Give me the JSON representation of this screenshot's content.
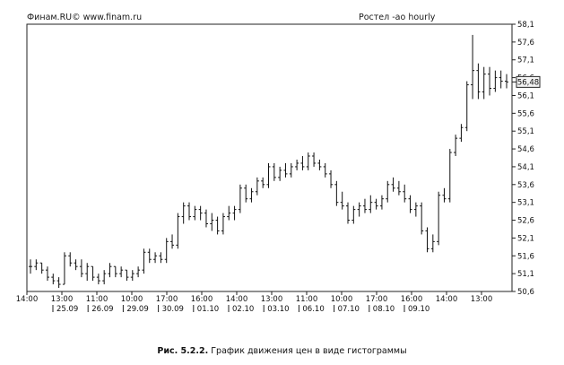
{
  "header": {
    "source": "Финам.RU© www.finam.ru",
    "instrument": "Ростел -ао hourly"
  },
  "caption": {
    "number": "Рис. 5.2.2.",
    "text": "График движения цен в виде гистограммы"
  },
  "chart_data": {
    "type": "ohlc",
    "title": "Ростел -ао hourly",
    "xlabel": "",
    "ylabel": "",
    "ylim": [
      50.6,
      58.1
    ],
    "y_ticks": [
      "58,1",
      "57,6",
      "57,1",
      "56,6",
      "56,1",
      "55,6",
      "55,1",
      "54,6",
      "54,1",
      "53,6",
      "53,1",
      "52,6",
      "52,1",
      "51,6",
      "51,1",
      "50,6"
    ],
    "time_labels": [
      "14:00",
      "13:00",
      "11:00",
      "10:00",
      "17:00",
      "16:00",
      "14:00",
      "13:00",
      "11:00",
      "10:00",
      "17:00",
      "16:00",
      "14:00",
      "13:00"
    ],
    "date_labels": [
      "25.09",
      "26.09",
      "29.09",
      "30.09",
      "01.10",
      "02.10",
      "03.10",
      "06.10",
      "07.10",
      "08.10",
      "09.10"
    ],
    "last_price": "56,48",
    "last_price_value": 56.48,
    "grid": false,
    "bars": [
      [
        51.3,
        51.5,
        51.1,
        51.3
      ],
      [
        51.3,
        51.5,
        51.2,
        51.4
      ],
      [
        51.4,
        51.4,
        51.1,
        51.2
      ],
      [
        51.2,
        51.3,
        50.9,
        51.0
      ],
      [
        51.0,
        51.1,
        50.8,
        50.9
      ],
      [
        50.9,
        51.0,
        50.7,
        50.8
      ],
      [
        50.8,
        51.7,
        50.8,
        51.6
      ],
      [
        51.6,
        51.7,
        51.3,
        51.4
      ],
      [
        51.4,
        51.5,
        51.2,
        51.3
      ],
      [
        51.3,
        51.5,
        51.0,
        51.1
      ],
      [
        51.1,
        51.4,
        50.9,
        51.3
      ],
      [
        51.3,
        51.3,
        50.9,
        51.0
      ],
      [
        51.0,
        51.1,
        50.8,
        50.9
      ],
      [
        50.9,
        51.2,
        50.8,
        51.1
      ],
      [
        51.1,
        51.4,
        51.0,
        51.3
      ],
      [
        51.3,
        51.3,
        51.0,
        51.1
      ],
      [
        51.1,
        51.3,
        51.0,
        51.2
      ],
      [
        51.2,
        51.2,
        50.9,
        51.0
      ],
      [
        51.0,
        51.2,
        50.9,
        51.1
      ],
      [
        51.1,
        51.3,
        51.0,
        51.2
      ],
      [
        51.2,
        51.8,
        51.1,
        51.7
      ],
      [
        51.7,
        51.8,
        51.4,
        51.5
      ],
      [
        51.5,
        51.7,
        51.4,
        51.6
      ],
      [
        51.6,
        51.7,
        51.4,
        51.5
      ],
      [
        51.5,
        52.1,
        51.4,
        52.0
      ],
      [
        52.0,
        52.2,
        51.8,
        51.9
      ],
      [
        51.9,
        52.8,
        51.8,
        52.7
      ],
      [
        52.7,
        53.1,
        52.5,
        53.0
      ],
      [
        53.0,
        53.1,
        52.6,
        52.7
      ],
      [
        52.7,
        53.0,
        52.6,
        52.9
      ],
      [
        52.9,
        53.0,
        52.6,
        52.8
      ],
      [
        52.8,
        52.9,
        52.4,
        52.5
      ],
      [
        52.5,
        52.8,
        52.3,
        52.6
      ],
      [
        52.6,
        52.7,
        52.2,
        52.3
      ],
      [
        52.3,
        52.8,
        52.2,
        52.7
      ],
      [
        52.7,
        53.0,
        52.6,
        52.8
      ],
      [
        52.8,
        53.0,
        52.6,
        52.9
      ],
      [
        52.9,
        53.6,
        52.8,
        53.5
      ],
      [
        53.5,
        53.6,
        53.1,
        53.2
      ],
      [
        53.2,
        53.5,
        53.1,
        53.4
      ],
      [
        53.4,
        53.8,
        53.3,
        53.7
      ],
      [
        53.7,
        53.8,
        53.5,
        53.6
      ],
      [
        53.6,
        54.2,
        53.5,
        54.1
      ],
      [
        54.1,
        54.2,
        53.7,
        53.8
      ],
      [
        53.8,
        54.1,
        53.7,
        54.0
      ],
      [
        54.0,
        54.2,
        53.8,
        53.9
      ],
      [
        53.9,
        54.2,
        53.8,
        54.1
      ],
      [
        54.1,
        54.3,
        54.0,
        54.2
      ],
      [
        54.2,
        54.4,
        54.0,
        54.1
      ],
      [
        54.1,
        54.5,
        54.0,
        54.4
      ],
      [
        54.4,
        54.5,
        54.1,
        54.2
      ],
      [
        54.2,
        54.3,
        54.0,
        54.1
      ],
      [
        54.1,
        54.2,
        53.8,
        53.9
      ],
      [
        53.9,
        54.0,
        53.5,
        53.6
      ],
      [
        53.6,
        53.7,
        53.0,
        53.1
      ],
      [
        53.1,
        53.4,
        52.9,
        53.0
      ],
      [
        53.0,
        53.1,
        52.5,
        52.6
      ],
      [
        52.6,
        53.0,
        52.5,
        52.9
      ],
      [
        52.9,
        53.1,
        52.7,
        53.0
      ],
      [
        53.0,
        53.2,
        52.8,
        52.9
      ],
      [
        52.9,
        53.3,
        52.8,
        53.1
      ],
      [
        53.1,
        53.2,
        52.9,
        53.0
      ],
      [
        53.0,
        53.3,
        52.9,
        53.2
      ],
      [
        53.2,
        53.7,
        53.1,
        53.6
      ],
      [
        53.6,
        53.8,
        53.4,
        53.5
      ],
      [
        53.5,
        53.7,
        53.3,
        53.4
      ],
      [
        53.4,
        53.6,
        53.1,
        53.2
      ],
      [
        53.2,
        53.3,
        52.8,
        52.9
      ],
      [
        52.9,
        53.1,
        52.7,
        53.0
      ],
      [
        53.0,
        53.1,
        52.2,
        52.3
      ],
      [
        52.3,
        52.4,
        51.7,
        51.8
      ],
      [
        51.8,
        52.2,
        51.7,
        52.0
      ],
      [
        52.0,
        53.4,
        51.9,
        53.3
      ],
      [
        53.3,
        53.5,
        53.1,
        53.2
      ],
      [
        53.2,
        54.6,
        53.1,
        54.5
      ],
      [
        54.5,
        55.0,
        54.4,
        54.9
      ],
      [
        54.9,
        55.3,
        54.8,
        55.2
      ],
      [
        55.2,
        56.5,
        55.1,
        56.4
      ],
      [
        56.4,
        57.8,
        56.0,
        56.8
      ],
      [
        56.8,
        57.0,
        56.0,
        56.2
      ],
      [
        56.2,
        56.9,
        56.0,
        56.7
      ],
      [
        56.7,
        56.9,
        56.1,
        56.3
      ],
      [
        56.3,
        56.8,
        56.2,
        56.6
      ],
      [
        56.6,
        56.8,
        56.3,
        56.5
      ],
      [
        56.5,
        56.7,
        56.3,
        56.48
      ]
    ]
  }
}
